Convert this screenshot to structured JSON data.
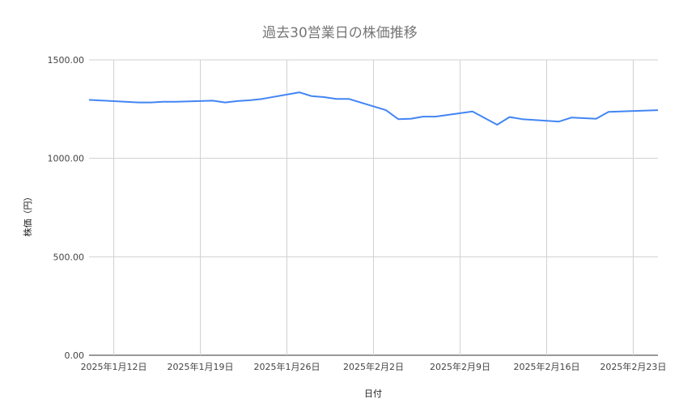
{
  "chart_data": {
    "type": "line",
    "title": "過去30営業日の株価推移",
    "xlabel": "日付",
    "ylabel": "株価（円）",
    "ylim": [
      0,
      1500
    ],
    "yticks": [
      "0.00",
      "500.00",
      "1000.00",
      "1500.00"
    ],
    "ytick_values": [
      0,
      500,
      1000,
      1500
    ],
    "xlim": [
      "2025-01-10",
      "2025-02-25"
    ],
    "xticks": [
      "2025-01-12",
      "2025-01-19",
      "2025-01-26",
      "2025-02-02",
      "2025-02-09",
      "2025-02-16",
      "2025-02-23"
    ],
    "xtick_labels": [
      "2025年1月12日",
      "2025年1月19日",
      "2025年1月26日",
      "2025年2月2日",
      "2025年2月9日",
      "2025年2月16日",
      "2025年2月23日"
    ],
    "grid": true,
    "line_color": "#4285F4",
    "x": [
      "2025-01-10",
      "2025-01-14",
      "2025-01-15",
      "2025-01-16",
      "2025-01-17",
      "2025-01-20",
      "2025-01-21",
      "2025-01-22",
      "2025-01-23",
      "2025-01-24",
      "2025-01-27",
      "2025-01-28",
      "2025-01-29",
      "2025-01-30",
      "2025-01-31",
      "2025-02-03",
      "2025-02-04",
      "2025-02-05",
      "2025-02-06",
      "2025-02-07",
      "2025-02-10",
      "2025-02-12",
      "2025-02-13",
      "2025-02-14",
      "2025-02-17",
      "2025-02-18",
      "2025-02-19",
      "2025-02-20",
      "2025-02-21",
      "2025-02-25"
    ],
    "values": [
      1297,
      1284,
      1284,
      1287,
      1287,
      1293,
      1284,
      1291,
      1295,
      1302,
      1335,
      1316,
      1311,
      1302,
      1302,
      1245,
      1199,
      1201,
      1212,
      1212,
      1238,
      1171,
      1210,
      1199,
      1187,
      1207,
      1204,
      1201,
      1236,
      1245
    ]
  }
}
